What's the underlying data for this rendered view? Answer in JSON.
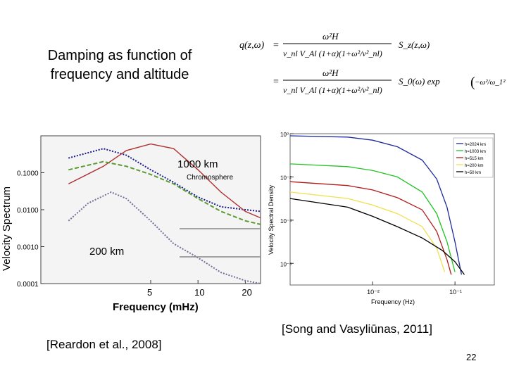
{
  "slide": {
    "title_line1": "Damping as function of",
    "title_line2": "frequency and altitude",
    "ref_left": "[Reardon et al., 2008]",
    "ref_right": "[Song and Vasyliūnas, 2011]",
    "page_number": "22"
  },
  "equation": {
    "lhs": "q(z,ω)",
    "num": "ω²H",
    "den": "ν_nl V_Al (1+α)(1+ω²/ν²_nl)",
    "rhs1": "S_z(z,ω)",
    "rhs2_prefix": "S_0(ω) exp",
    "rhs2_arg": "−ω²/ω_1²"
  },
  "chart_data": [
    {
      "type": "line",
      "xlabel": "Frequency (mHz)",
      "ylabel": "Velocity Spectrum",
      "x_scale": "log",
      "y_scale": "log",
      "xlim": [
        1,
        25
      ],
      "ylim": [
        0.0001,
        1
      ],
      "x_ticks": [
        "5",
        "10",
        "20"
      ],
      "y_ticks": [
        "0.1000",
        "0.0100",
        "0.0010",
        "0.0001"
      ],
      "annotations": [
        "1000 km",
        "Chromosphere",
        "200 km"
      ],
      "series": [
        {
          "name": "",
          "color": "#1a1a8c",
          "style": "dotted",
          "points": [
            [
              1.5,
              0.25
            ],
            [
              2.5,
              0.45
            ],
            [
              3.5,
              0.3
            ],
            [
              5,
              0.12
            ],
            [
              7,
              0.055
            ],
            [
              10,
              0.022
            ],
            [
              14,
              0.012
            ],
            [
              20,
              0.01
            ],
            [
              25,
              0.009
            ]
          ]
        },
        {
          "name": "",
          "color": "#b03030",
          "style": "solid",
          "points": [
            [
              1.5,
              0.05
            ],
            [
              2.5,
              0.15
            ],
            [
              3.5,
              0.4
            ],
            [
              5,
              0.6
            ],
            [
              7,
              0.45
            ],
            [
              10,
              0.12
            ],
            [
              14,
              0.03
            ],
            [
              20,
              0.009
            ],
            [
              25,
              0.006
            ]
          ]
        },
        {
          "name": "",
          "color": "#5a9a30",
          "style": "dashed",
          "points": [
            [
              1.5,
              0.12
            ],
            [
              2.5,
              0.2
            ],
            [
              3.5,
              0.15
            ],
            [
              5,
              0.09
            ],
            [
              7,
              0.05
            ],
            [
              10,
              0.02
            ],
            [
              14,
              0.009
            ],
            [
              20,
              0.005
            ],
            [
              25,
              0.004
            ]
          ]
        },
        {
          "name": "",
          "color": "#7a6a9a",
          "style": "dotted",
          "points": [
            [
              1.5,
              0.005
            ],
            [
              2,
              0.015
            ],
            [
              2.8,
              0.03
            ],
            [
              3.5,
              0.02
            ],
            [
              5,
              0.005
            ],
            [
              7,
              0.0012
            ],
            [
              10,
              0.0005
            ],
            [
              14,
              0.0002
            ],
            [
              20,
              0.00012
            ],
            [
              25,
              0.0001
            ]
          ]
        }
      ]
    },
    {
      "type": "line",
      "xlabel": "Frequency (Hz)",
      "ylabel": "Velocity Spectral Density",
      "x_scale": "log",
      "y_scale": "log",
      "xlim": [
        0.001,
        0.3
      ],
      "ylim": [
        1e-07,
        1
      ],
      "x_ticks": [
        "10⁻²",
        "10⁻¹"
      ],
      "y_ticks": [
        "10⁰",
        "10⁻²",
        "10⁻⁴",
        "10⁻⁶"
      ],
      "legend_position": "top-right",
      "series": [
        {
          "name": "h=2024 km",
          "color": "#1c2a9a",
          "points": [
            [
              0.001,
              0.8
            ],
            [
              0.005,
              0.7
            ],
            [
              0.01,
              0.5
            ],
            [
              0.02,
              0.25
            ],
            [
              0.04,
              0.06
            ],
            [
              0.06,
              0.008
            ],
            [
              0.08,
              0.0004
            ],
            [
              0.1,
              1e-05
            ],
            [
              0.12,
              3e-07
            ]
          ]
        },
        {
          "name": "h=1003 km",
          "color": "#22c422",
          "points": [
            [
              0.001,
              0.04
            ],
            [
              0.005,
              0.03
            ],
            [
              0.01,
              0.02
            ],
            [
              0.02,
              0.01
            ],
            [
              0.04,
              0.002
            ],
            [
              0.06,
              0.0002
            ],
            [
              0.08,
              1e-05
            ],
            [
              0.1,
              4e-07
            ]
          ]
        },
        {
          "name": "h=515 km",
          "color": "#b31b1b",
          "points": [
            [
              0.001,
              0.006
            ],
            [
              0.005,
              0.004
            ],
            [
              0.01,
              0.0025
            ],
            [
              0.02,
              0.0011
            ],
            [
              0.04,
              0.0003
            ],
            [
              0.06,
              3e-05
            ],
            [
              0.08,
              1.5e-06
            ],
            [
              0.09,
              3e-07
            ]
          ]
        },
        {
          "name": "h=200 km",
          "color": "#f0e050",
          "points": [
            [
              0.001,
              0.002
            ],
            [
              0.005,
              0.001
            ],
            [
              0.01,
              0.0005
            ],
            [
              0.02,
              0.0002
            ],
            [
              0.04,
              5e-05
            ],
            [
              0.06,
              5e-06
            ],
            [
              0.075,
              4e-07
            ]
          ]
        },
        {
          "name": "h=50 km",
          "color": "#000000",
          "points": [
            [
              0.001,
              0.001
            ],
            [
              0.005,
              0.0004
            ],
            [
              0.01,
              0.00015
            ],
            [
              0.02,
              5e-05
            ],
            [
              0.04,
              1.5e-05
            ],
            [
              0.07,
              4e-06
            ],
            [
              0.1,
              1.2e-06
            ],
            [
              0.13,
              3e-07
            ]
          ]
        }
      ]
    }
  ]
}
